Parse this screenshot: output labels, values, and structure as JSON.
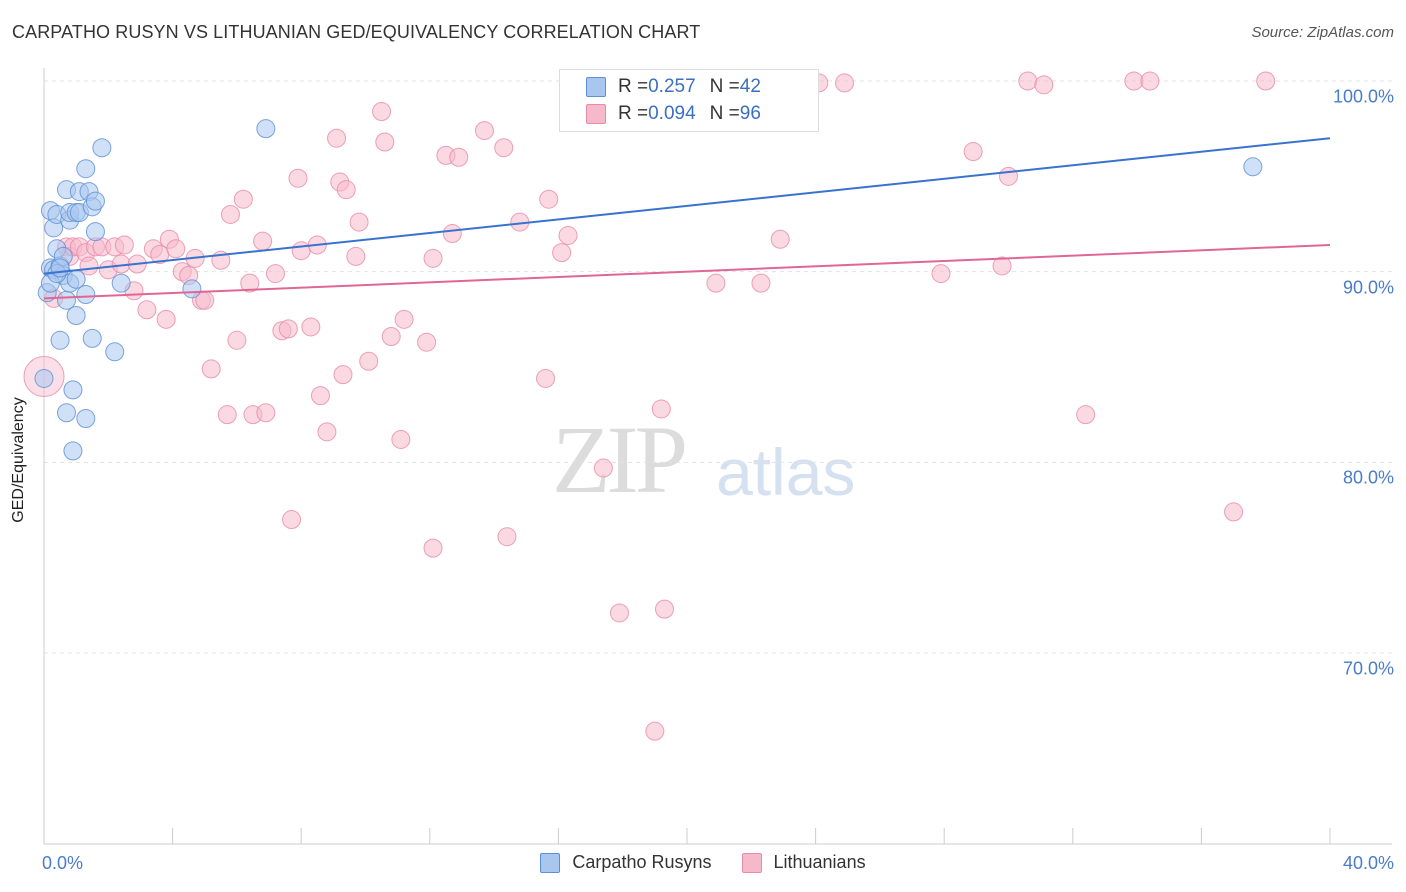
{
  "title": "CARPATHO RUSYN VS LITHUANIAN GED/EQUIVALENCY CORRELATION CHART",
  "source": "Source: ZipAtlas.com",
  "watermark": {
    "zip": "ZIP",
    "atlas": "atlas"
  },
  "legend": {
    "series1": {
      "r_label": "R = ",
      "r_value": "0.257",
      "n_label": "N = ",
      "n_value": "42"
    },
    "series2": {
      "r_label": "R = ",
      "r_value": "0.094",
      "n_label": "N = ",
      "n_value": "96"
    }
  },
  "chart_data": {
    "type": "scatter",
    "title": "CARPATHO RUSYN VS LITHUANIAN GED/EQUIVALENCY CORRELATION CHART",
    "xlabel": "",
    "ylabel": "GED/Equivalency",
    "xlim": [
      0,
      40
    ],
    "ylim": [
      60,
      100
    ],
    "x_tick_labels": [
      "0.0%",
      "40.0%"
    ],
    "y_ticks": [
      70,
      80,
      90,
      100
    ],
    "y_tick_labels": [
      "70.0%",
      "80.0%",
      "90.0%",
      "100.0%"
    ],
    "legend_position": "bottom-center",
    "series": [
      {
        "name": "Carpatho Rusyns",
        "color": "#a9c6ee",
        "edge_color": "#5b8fd6",
        "line_color": "#3873cf",
        "trend": {
          "x0": 0,
          "y0": 89.9,
          "x1": 40,
          "y1": 97.0
        },
        "points": [
          [
            0.0,
            84.4
          ],
          [
            0.1,
            88.9
          ],
          [
            0.2,
            90.2
          ],
          [
            0.2,
            93.2
          ],
          [
            0.3,
            92.3
          ],
          [
            0.3,
            90.1
          ],
          [
            0.4,
            91.2
          ],
          [
            0.4,
            93.0
          ],
          [
            0.5,
            90.3
          ],
          [
            0.5,
            86.4
          ],
          [
            0.6,
            89.8
          ],
          [
            0.6,
            90.8
          ],
          [
            0.7,
            88.5
          ],
          [
            0.7,
            94.3
          ],
          [
            0.7,
            82.6
          ],
          [
            0.8,
            89.4
          ],
          [
            0.8,
            92.7
          ],
          [
            0.8,
            93.1
          ],
          [
            0.9,
            80.6
          ],
          [
            0.9,
            83.8
          ],
          [
            1.0,
            93.1
          ],
          [
            1.0,
            87.7
          ],
          [
            1.1,
            93.1
          ],
          [
            1.1,
            94.2
          ],
          [
            1.0,
            89.6
          ],
          [
            1.3,
            95.4
          ],
          [
            1.3,
            82.3
          ],
          [
            1.4,
            94.2
          ],
          [
            1.5,
            93.4
          ],
          [
            1.5,
            86.5
          ],
          [
            1.6,
            92.1
          ],
          [
            1.6,
            93.7
          ],
          [
            1.8,
            96.5
          ],
          [
            2.2,
            85.8
          ],
          [
            2.4,
            89.4
          ],
          [
            4.6,
            89.1
          ],
          [
            6.9,
            97.5
          ],
          [
            37.6,
            95.5
          ],
          [
            0.2,
            89.4
          ],
          [
            0.4,
            89.9
          ],
          [
            0.5,
            90.2
          ],
          [
            1.3,
            88.8
          ]
        ]
      },
      {
        "name": "Lithuanians",
        "color": "#f6b9cc",
        "edge_color": "#e98aa8",
        "line_color": "#e06793",
        "trend": {
          "x0": 0,
          "y0": 88.6,
          "x1": 40,
          "y1": 91.4
        },
        "points": [
          [
            0.0,
            84.5
          ],
          [
            0.3,
            88.6
          ],
          [
            0.7,
            91.3
          ],
          [
            0.8,
            90.8
          ],
          [
            0.9,
            91.3
          ],
          [
            1.1,
            91.3
          ],
          [
            1.3,
            91.0
          ],
          [
            1.4,
            90.3
          ],
          [
            1.6,
            91.3
          ],
          [
            1.8,
            91.3
          ],
          [
            2.0,
            90.1
          ],
          [
            2.2,
            91.3
          ],
          [
            2.4,
            90.4
          ],
          [
            2.5,
            91.4
          ],
          [
            2.8,
            89.0
          ],
          [
            2.9,
            90.4
          ],
          [
            3.2,
            88.0
          ],
          [
            3.4,
            91.2
          ],
          [
            3.6,
            90.9
          ],
          [
            3.8,
            87.5
          ],
          [
            3.9,
            91.7
          ],
          [
            4.1,
            91.2
          ],
          [
            4.3,
            90.0
          ],
          [
            4.5,
            89.8
          ],
          [
            4.7,
            90.7
          ],
          [
            4.9,
            88.5
          ],
          [
            5.0,
            88.5
          ],
          [
            5.2,
            84.9
          ],
          [
            5.5,
            90.6
          ],
          [
            5.7,
            82.5
          ],
          [
            5.8,
            93.0
          ],
          [
            6.0,
            86.4
          ],
          [
            6.2,
            93.8
          ],
          [
            6.4,
            89.4
          ],
          [
            6.5,
            82.5
          ],
          [
            6.8,
            91.6
          ],
          [
            6.9,
            82.6
          ],
          [
            7.2,
            89.9
          ],
          [
            7.4,
            86.9
          ],
          [
            7.6,
            87.0
          ],
          [
            7.7,
            77.0
          ],
          [
            7.9,
            94.9
          ],
          [
            8.0,
            91.1
          ],
          [
            8.3,
            87.1
          ],
          [
            8.5,
            91.4
          ],
          [
            8.6,
            83.5
          ],
          [
            8.8,
            81.6
          ],
          [
            9.1,
            97.0
          ],
          [
            9.2,
            94.7
          ],
          [
            9.3,
            84.6
          ],
          [
            9.4,
            94.3
          ],
          [
            9.7,
            90.8
          ],
          [
            9.8,
            92.6
          ],
          [
            10.1,
            85.3
          ],
          [
            10.5,
            98.4
          ],
          [
            10.6,
            96.8
          ],
          [
            10.8,
            86.6
          ],
          [
            11.1,
            81.2
          ],
          [
            11.2,
            87.5
          ],
          [
            11.9,
            86.3
          ],
          [
            12.1,
            75.5
          ],
          [
            12.1,
            90.7
          ],
          [
            12.5,
            96.1
          ],
          [
            12.7,
            92.0
          ],
          [
            12.9,
            96.0
          ],
          [
            13.7,
            97.4
          ],
          [
            14.3,
            96.5
          ],
          [
            14.4,
            76.1
          ],
          [
            14.8,
            92.6
          ],
          [
            15.6,
            84.4
          ],
          [
            15.7,
            93.8
          ],
          [
            16.1,
            91.0
          ],
          [
            16.3,
            91.9
          ],
          [
            17.4,
            79.7
          ],
          [
            17.9,
            72.1
          ],
          [
            19.0,
            65.9
          ],
          [
            19.2,
            82.8
          ],
          [
            19.3,
            72.3
          ],
          [
            20.9,
            89.4
          ],
          [
            22.0,
            98.0
          ],
          [
            22.3,
            89.4
          ],
          [
            22.9,
            91.7
          ],
          [
            23.6,
            100.0
          ],
          [
            24.1,
            99.9
          ],
          [
            24.9,
            99.9
          ],
          [
            27.9,
            89.9
          ],
          [
            28.9,
            96.3
          ],
          [
            29.8,
            90.3
          ],
          [
            30.0,
            95.0
          ],
          [
            30.6,
            100.0
          ],
          [
            31.1,
            99.8
          ],
          [
            32.4,
            82.5
          ],
          [
            33.9,
            100.0
          ],
          [
            34.4,
            100.0
          ],
          [
            37.0,
            77.4
          ],
          [
            38.0,
            100.0
          ]
        ]
      }
    ]
  }
}
